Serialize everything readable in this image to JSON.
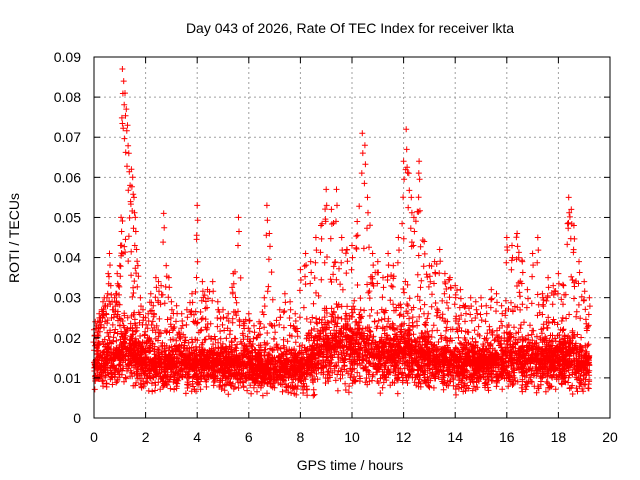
{
  "chart_data": {
    "type": "scatter",
    "title": "Day 043 of 2026, Rate Of TEC Index for receiver lkta",
    "xlabel": "GPS time / hours",
    "ylabel": "ROTI / TECUs",
    "xlim": [
      0,
      20
    ],
    "ylim": [
      0,
      0.09
    ],
    "x_ticks": [
      0,
      2,
      4,
      6,
      8,
      10,
      12,
      14,
      16,
      18,
      20
    ],
    "y_ticks": [
      0,
      0.01,
      0.02,
      0.03,
      0.04,
      0.05,
      0.06,
      0.07,
      0.08,
      0.09
    ],
    "x_tick_labels": [
      "0",
      "2",
      "4",
      "6",
      "8",
      "10",
      "12",
      "14",
      "16",
      "18",
      "20"
    ],
    "y_tick_labels": [
      "0",
      "0.01",
      "0.02",
      "0.03",
      "0.04",
      "0.05",
      "0.06",
      "0.07",
      "0.08",
      "0.09"
    ],
    "grid": true,
    "marker": "+",
    "marker_color": "#ff0000",
    "series": [
      {
        "name": "ROTI",
        "x": [
          0.0,
          0.05,
          0.1,
          0.15,
          0.2,
          0.25,
          0.3,
          0.35,
          0.4,
          0.45,
          0.5,
          0.55,
          0.6,
          0.65,
          0.7,
          0.75,
          0.8,
          0.85,
          0.9,
          0.95,
          1.0,
          1.05,
          1.1,
          1.15,
          1.2,
          1.25,
          1.3,
          1.35,
          1.4,
          1.45,
          1.5,
          1.55,
          1.6,
          1.65,
          1.7,
          1.8,
          1.9,
          2.0,
          2.1,
          2.2,
          2.3,
          2.4,
          2.5,
          2.6,
          2.7,
          2.8,
          2.9,
          3.0,
          3.2,
          3.4,
          3.6,
          3.8,
          4.0,
          4.2,
          4.4,
          4.6,
          4.8,
          5.0,
          5.2,
          5.4,
          5.6,
          5.8,
          6.0,
          6.2,
          6.4,
          6.6,
          6.7,
          6.8,
          7.0,
          7.2,
          7.4,
          7.6,
          7.8,
          8.0,
          8.2,
          8.4,
          8.6,
          8.8,
          9.0,
          9.2,
          9.4,
          9.6,
          9.8,
          10.0,
          10.2,
          10.4,
          10.5,
          10.6,
          10.8,
          11.0,
          11.2,
          11.4,
          11.6,
          11.8,
          12.0,
          12.1,
          12.2,
          12.3,
          12.4,
          12.6,
          12.8,
          13.0,
          13.2,
          13.4,
          13.6,
          13.8,
          14.0,
          14.2,
          14.4,
          14.6,
          14.8,
          15.0,
          15.2,
          15.4,
          15.6,
          15.8,
          16.0,
          16.2,
          16.4,
          16.6,
          16.8,
          17.0,
          17.2,
          17.4,
          17.6,
          17.8,
          18.0,
          18.2,
          18.4,
          18.5,
          18.6,
          18.8,
          19.0,
          19.2
        ],
        "y_low": [
          0.006,
          0.006,
          0.006,
          0.006,
          0.006,
          0.006,
          0.006,
          0.005,
          0.005,
          0.005,
          0.005,
          0.005,
          0.006,
          0.006,
          0.006,
          0.006,
          0.006,
          0.006,
          0.006,
          0.006,
          0.006,
          0.006,
          0.006,
          0.006,
          0.006,
          0.006,
          0.006,
          0.006,
          0.006,
          0.006,
          0.005,
          0.005,
          0.005,
          0.005,
          0.005,
          0.005,
          0.005,
          0.005,
          0.005,
          0.005,
          0.005,
          0.005,
          0.005,
          0.005,
          0.005,
          0.005,
          0.005,
          0.005,
          0.005,
          0.005,
          0.005,
          0.005,
          0.005,
          0.005,
          0.005,
          0.005,
          0.005,
          0.005,
          0.005,
          0.005,
          0.005,
          0.005,
          0.005,
          0.005,
          0.005,
          0.005,
          0.005,
          0.005,
          0.005,
          0.005,
          0.005,
          0.005,
          0.005,
          0.004,
          0.004,
          0.004,
          0.004,
          0.005,
          0.005,
          0.005,
          0.005,
          0.005,
          0.005,
          0.005,
          0.005,
          0.005,
          0.005,
          0.005,
          0.005,
          0.005,
          0.005,
          0.005,
          0.005,
          0.005,
          0.005,
          0.005,
          0.005,
          0.005,
          0.005,
          0.005,
          0.005,
          0.005,
          0.005,
          0.005,
          0.005,
          0.005,
          0.005,
          0.005,
          0.005,
          0.005,
          0.005,
          0.005,
          0.005,
          0.005,
          0.005,
          0.005,
          0.005,
          0.005,
          0.005,
          0.005,
          0.005,
          0.005,
          0.005,
          0.005,
          0.005,
          0.005,
          0.005,
          0.004,
          0.004,
          0.004,
          0.004,
          0.004,
          0.004,
          0.005
        ],
        "y_high": [
          0.022,
          0.024,
          0.023,
          0.024,
          0.026,
          0.025,
          0.027,
          0.029,
          0.03,
          0.028,
          0.03,
          0.036,
          0.041,
          0.033,
          0.029,
          0.027,
          0.03,
          0.031,
          0.036,
          0.033,
          0.038,
          0.05,
          0.087,
          0.084,
          0.081,
          0.077,
          0.073,
          0.066,
          0.058,
          0.062,
          0.06,
          0.055,
          0.05,
          0.042,
          0.038,
          0.03,
          0.027,
          0.025,
          0.026,
          0.031,
          0.028,
          0.035,
          0.034,
          0.033,
          0.051,
          0.038,
          0.035,
          0.029,
          0.028,
          0.026,
          0.027,
          0.031,
          0.053,
          0.034,
          0.032,
          0.034,
          0.029,
          0.027,
          0.026,
          0.036,
          0.05,
          0.024,
          0.026,
          0.023,
          0.024,
          0.03,
          0.053,
          0.046,
          0.023,
          0.027,
          0.031,
          0.029,
          0.026,
          0.037,
          0.041,
          0.039,
          0.045,
          0.048,
          0.057,
          0.052,
          0.057,
          0.045,
          0.042,
          0.043,
          0.049,
          0.071,
          0.068,
          0.055,
          0.041,
          0.039,
          0.035,
          0.041,
          0.038,
          0.045,
          0.064,
          0.072,
          0.061,
          0.055,
          0.05,
          0.064,
          0.044,
          0.038,
          0.039,
          0.042,
          0.036,
          0.035,
          0.033,
          0.032,
          0.028,
          0.03,
          0.029,
          0.03,
          0.028,
          0.032,
          0.031,
          0.028,
          0.045,
          0.043,
          0.046,
          0.039,
          0.032,
          0.041,
          0.045,
          0.03,
          0.035,
          0.033,
          0.036,
          0.033,
          0.055,
          0.052,
          0.048,
          0.039,
          0.034,
          0.03
        ],
        "y_median": [
          0.012,
          0.012,
          0.013,
          0.012,
          0.013,
          0.012,
          0.013,
          0.013,
          0.014,
          0.013,
          0.014,
          0.015,
          0.015,
          0.014,
          0.014,
          0.014,
          0.014,
          0.015,
          0.015,
          0.015,
          0.016,
          0.016,
          0.017,
          0.018,
          0.018,
          0.017,
          0.017,
          0.016,
          0.016,
          0.016,
          0.015,
          0.015,
          0.015,
          0.014,
          0.014,
          0.013,
          0.013,
          0.013,
          0.013,
          0.013,
          0.013,
          0.013,
          0.013,
          0.013,
          0.013,
          0.013,
          0.013,
          0.013,
          0.013,
          0.013,
          0.013,
          0.013,
          0.013,
          0.013,
          0.013,
          0.013,
          0.013,
          0.013,
          0.013,
          0.013,
          0.013,
          0.013,
          0.013,
          0.012,
          0.012,
          0.012,
          0.012,
          0.012,
          0.012,
          0.012,
          0.012,
          0.012,
          0.012,
          0.012,
          0.013,
          0.014,
          0.015,
          0.016,
          0.017,
          0.017,
          0.018,
          0.017,
          0.017,
          0.017,
          0.017,
          0.017,
          0.016,
          0.016,
          0.015,
          0.015,
          0.015,
          0.015,
          0.015,
          0.015,
          0.016,
          0.016,
          0.016,
          0.015,
          0.015,
          0.015,
          0.015,
          0.014,
          0.014,
          0.014,
          0.014,
          0.014,
          0.014,
          0.013,
          0.013,
          0.013,
          0.013,
          0.013,
          0.013,
          0.013,
          0.013,
          0.013,
          0.014,
          0.014,
          0.014,
          0.014,
          0.014,
          0.014,
          0.014,
          0.014,
          0.014,
          0.014,
          0.014,
          0.014,
          0.014,
          0.014,
          0.014,
          0.013,
          0.013,
          0.013
        ]
      }
    ]
  }
}
